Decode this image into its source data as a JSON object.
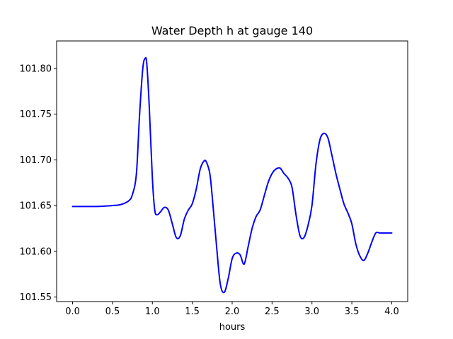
{
  "chart_data": {
    "type": "line",
    "title": "Water Depth h at gauge 140",
    "xlabel": "hours",
    "ylabel": "",
    "xlim": [
      -0.2,
      4.2
    ],
    "ylim": [
      101.545,
      101.83
    ],
    "grid": false,
    "xticks": [
      0.0,
      0.5,
      1.0,
      1.5,
      2.0,
      2.5,
      3.0,
      3.5,
      4.0
    ],
    "xtick_labels": [
      "0.0",
      "0.5",
      "1.0",
      "1.5",
      "2.0",
      "2.5",
      "3.0",
      "3.5",
      "4.0"
    ],
    "yticks": [
      101.55,
      101.6,
      101.65,
      101.7,
      101.75,
      101.8
    ],
    "ytick_labels": [
      "101.55",
      "101.60",
      "101.65",
      "101.70",
      "101.75",
      "101.80"
    ],
    "colors": {
      "line": "#0000ff",
      "axes": "#000000",
      "background": "#ffffff"
    },
    "series": [
      {
        "x": [
          0.0,
          0.3,
          0.5,
          0.6,
          0.7,
          0.75,
          0.8,
          0.84,
          0.88,
          0.91,
          0.93,
          0.96,
          1.0,
          1.03,
          1.06,
          1.1,
          1.15,
          1.2,
          1.25,
          1.3,
          1.35,
          1.4,
          1.45,
          1.5,
          1.55,
          1.6,
          1.65,
          1.68,
          1.72,
          1.75,
          1.8,
          1.85,
          1.9,
          1.95,
          2.0,
          2.05,
          2.1,
          2.15,
          2.2,
          2.25,
          2.3,
          2.35,
          2.4,
          2.45,
          2.5,
          2.55,
          2.6,
          2.65,
          2.7,
          2.75,
          2.8,
          2.85,
          2.9,
          2.95,
          3.0,
          3.05,
          3.1,
          3.15,
          3.2,
          3.25,
          3.3,
          3.35,
          3.4,
          3.45,
          3.5,
          3.55,
          3.6,
          3.65,
          3.7,
          3.75,
          3.8,
          3.85,
          3.9,
          3.95,
          4.0
        ],
        "values": [
          101.649,
          101.649,
          101.65,
          101.651,
          101.655,
          101.662,
          101.685,
          101.75,
          101.8,
          101.811,
          101.805,
          101.76,
          101.68,
          101.645,
          101.64,
          101.643,
          101.648,
          101.645,
          101.63,
          101.615,
          101.617,
          101.635,
          101.645,
          101.652,
          101.668,
          101.69,
          101.699,
          101.697,
          101.685,
          101.66,
          101.61,
          101.565,
          101.555,
          101.57,
          101.592,
          101.598,
          101.596,
          101.586,
          101.605,
          101.625,
          101.638,
          101.645,
          101.66,
          101.675,
          101.685,
          101.69,
          101.691,
          101.685,
          101.68,
          101.67,
          101.64,
          101.617,
          101.615,
          101.628,
          101.65,
          101.695,
          101.722,
          101.729,
          101.724,
          101.705,
          101.685,
          101.668,
          101.652,
          101.642,
          101.63,
          101.608,
          101.595,
          101.59,
          101.598,
          101.61,
          101.62,
          101.62,
          101.62,
          101.62,
          101.62
        ]
      }
    ]
  }
}
